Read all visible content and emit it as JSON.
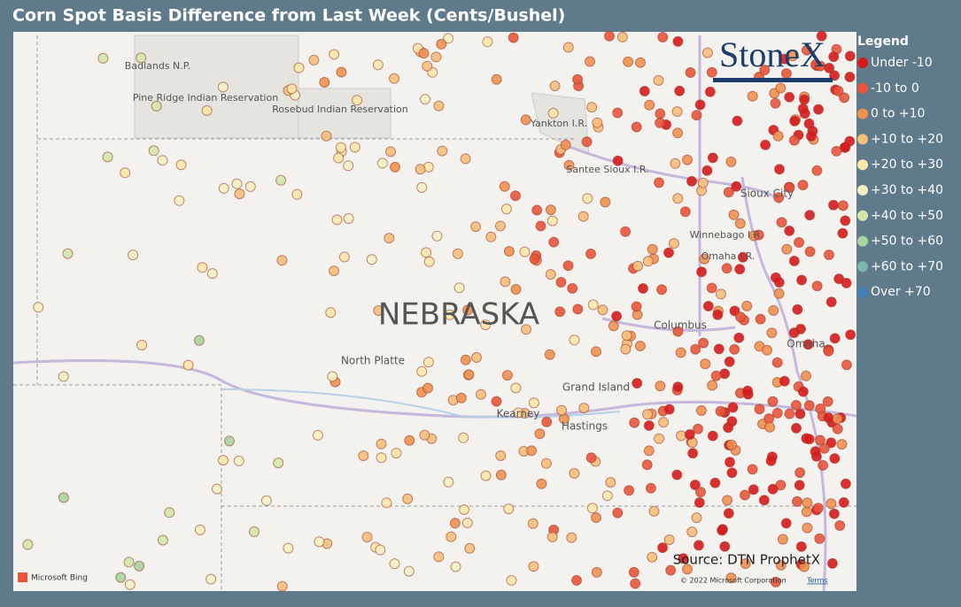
{
  "title": "Corn Spot Basis Difference from Last Week (Cents/Bushel)",
  "map": {
    "labels": [
      "Badlands N.P.",
      "Pine Ridge Indian Reservation",
      "Rosebud Indian Reservation",
      "Yankton I.R.",
      "Santee Sioux I.R.",
      "Sioux City",
      "Winnebago I.R.",
      "Omaha I.R.",
      "NEBRASKA",
      "Columbus",
      "Omaha",
      "North Platte",
      "Grand Island",
      "Kearney",
      "Hastings"
    ],
    "logo": "StoneX",
    "source": "Source: DTN ProphetX",
    "provider": "Microsoft Bing",
    "copyright": "© 2022 Microsoft Corporation",
    "terms": "Terms"
  },
  "legend": {
    "title": "Legend",
    "items": [
      {
        "label": "Under -10",
        "color": "#d7191c"
      },
      {
        "label": "-10 to 0",
        "color": "#e8553a"
      },
      {
        "label": "0 to +10",
        "color": "#f0914f"
      },
      {
        "label": "+10 to +20",
        "color": "#f7bf7c"
      },
      {
        "label": "+20 to +30",
        "color": "#fde7a9"
      },
      {
        "label": "+30 to +40",
        "color": "#f3f1c2"
      },
      {
        "label": "+40 to +50",
        "color": "#d3e8a8"
      },
      {
        "label": "+50 to +60",
        "color": "#a9d4a0"
      },
      {
        "label": "+60 to +70",
        "color": "#7bb8b0"
      },
      {
        "label": "Over +70",
        "color": "#3f82b8"
      }
    ]
  }
}
